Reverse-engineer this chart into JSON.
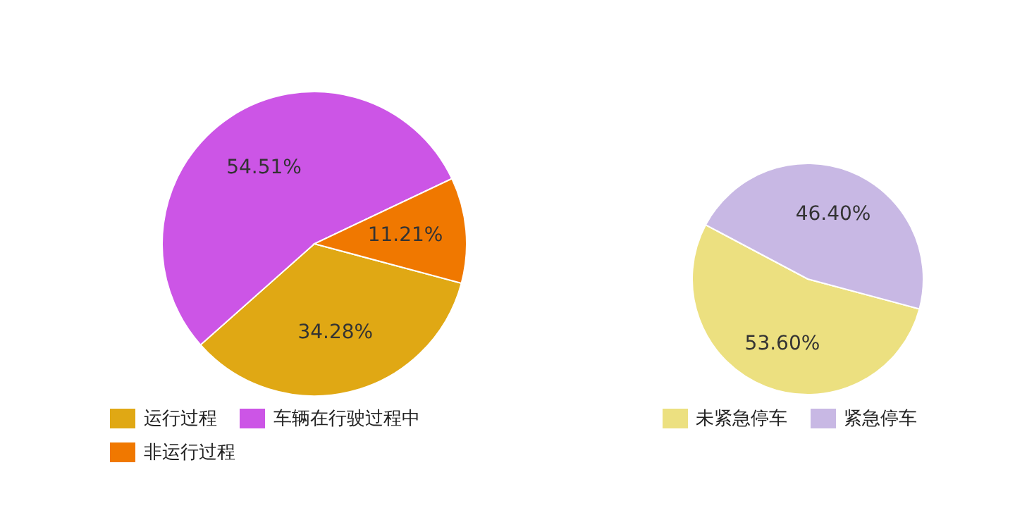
{
  "chart_data": [
    {
      "type": "pie",
      "categories": [
        "运行过程",
        "车辆在行驶过程中",
        "非运行过程"
      ],
      "values": [
        34.28,
        54.51,
        11.21
      ],
      "colors": [
        "#e0a814",
        "#cc55e6",
        "#f07800"
      ],
      "value_labels": [
        "34.28%",
        "54.51%",
        "11.21%"
      ],
      "legend": "bottom left"
    },
    {
      "type": "pie",
      "categories": [
        "未紧急停车",
        "紧急停车"
      ],
      "values": [
        53.6,
        46.4
      ],
      "colors": [
        "#ece080",
        "#c8b8e4"
      ],
      "value_labels": [
        "53.60%",
        "46.40%"
      ],
      "legend": "bottom"
    }
  ]
}
